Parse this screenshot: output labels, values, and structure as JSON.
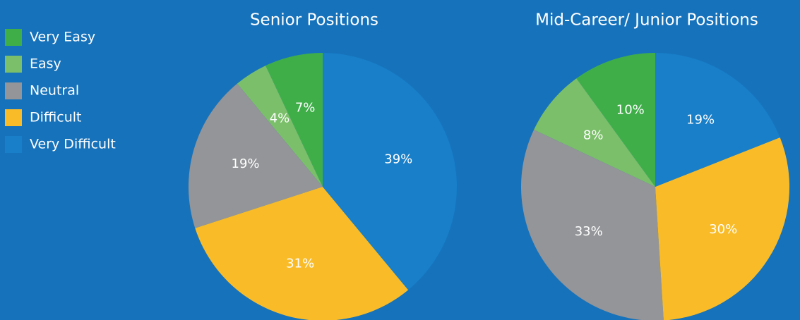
{
  "legend": {
    "labels": [
      "Very Easy",
      "Easy",
      "Neutral",
      "Difficult",
      "Very Difficult"
    ],
    "colors": [
      "#3fae49",
      "#7bbf6a",
      "#939598",
      "#f9bc28",
      "#187fc8"
    ]
  },
  "chart_data": [
    {
      "type": "pie",
      "title": "Senior Positions",
      "values": [
        7,
        4,
        19,
        31,
        39
      ],
      "value_labels": [
        "7%",
        "4%",
        "19%",
        "31%",
        "39%"
      ]
    },
    {
      "type": "pie",
      "title": "Mid-Career/ Junior Positions",
      "values": [
        10,
        8,
        33,
        30,
        19
      ],
      "value_labels": [
        "10%",
        "8%",
        "33%",
        "30%",
        "19%"
      ]
    }
  ]
}
